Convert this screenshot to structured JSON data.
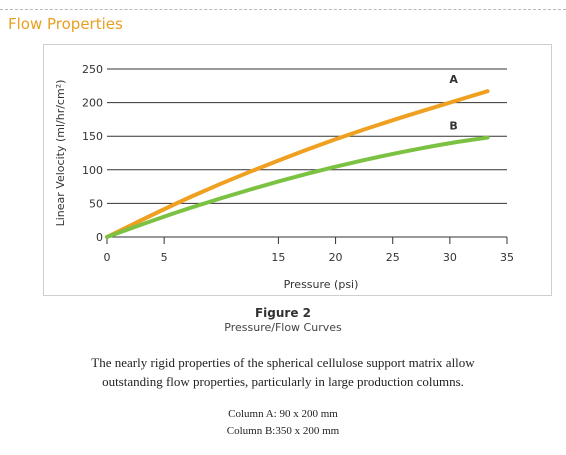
{
  "section_title": "Flow Properties",
  "figure": {
    "title": "Figure 2",
    "subtitle": "Pressure/Flow Curves"
  },
  "description": {
    "line1": "The nearly rigid properties of the spherical cellulose support matrix allow",
    "line2": "outstanding flow properties, particularly in large production columns."
  },
  "columns": {
    "a": "Column A: 90 x 200 mm",
    "b": "Column B:350 x 200 mm"
  },
  "chart_data": {
    "type": "line",
    "xlabel": "Pressure (psi)",
    "ylabel": "Linear Velocity (ml/hr/cm²)",
    "xlim": [
      0,
      35
    ],
    "ylim": [
      0,
      250
    ],
    "x_ticks": [
      "0",
      "5",
      "15",
      "20",
      "25",
      "30",
      "35"
    ],
    "x_tick_values": [
      0,
      5,
      15,
      20,
      25,
      30,
      35
    ],
    "y_ticks": [
      "250",
      "200",
      "150",
      "100",
      "50",
      "0"
    ],
    "y_tick_values": [
      250,
      200,
      150,
      100,
      50,
      0
    ],
    "grid": "horizontal",
    "series": [
      {
        "name": "A",
        "color": "#f0a020",
        "x": [
          0,
          5,
          10,
          15,
          20,
          25,
          30,
          33.3
        ],
        "y": [
          0,
          42,
          80,
          114,
          146,
          174,
          200,
          217
        ]
      },
      {
        "name": "B",
        "color": "#7cc242",
        "x": [
          0,
          5,
          10,
          15,
          20,
          25,
          30,
          33.3
        ],
        "y": [
          0,
          31,
          58,
          83,
          105,
          124,
          140,
          148
        ]
      }
    ]
  }
}
